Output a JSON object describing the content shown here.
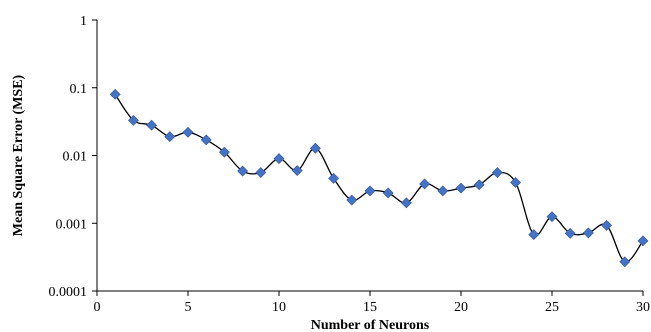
{
  "chart_data": {
    "type": "line",
    "title": "",
    "xlabel": "Number of Neurons",
    "ylabel": "Mean Square Error (MSE)",
    "xlim": [
      0,
      30
    ],
    "ylim": [
      0.0001,
      1
    ],
    "yscale": "log",
    "grid": false,
    "legend": "none",
    "x_ticks": [
      "0",
      "5",
      "10",
      "15",
      "20",
      "25",
      "30"
    ],
    "y_ticks": [
      "0.0001",
      "0.001",
      "0.01",
      "0.1",
      "1"
    ],
    "series": [
      {
        "marker": "diamond",
        "color": "#4472C4",
        "line_color": "#000000",
        "smooth": true,
        "x": [
          1,
          2,
          3,
          4,
          5,
          6,
          7,
          8,
          9,
          10,
          11,
          12,
          13,
          14,
          15,
          16,
          17,
          18,
          19,
          20,
          21,
          22,
          23,
          24,
          25,
          26,
          27,
          28,
          29,
          30
        ],
        "y": [
          0.08,
          0.033,
          0.028,
          0.019,
          0.022,
          0.017,
          0.0112,
          0.0059,
          0.0056,
          0.009,
          0.006,
          0.0128,
          0.0046,
          0.0022,
          0.003,
          0.0028,
          0.002,
          0.0038,
          0.003,
          0.0033,
          0.0037,
          0.0056,
          0.004,
          0.00068,
          0.00125,
          0.00071,
          0.00072,
          0.00093,
          0.00027,
          0.00055
        ]
      }
    ]
  }
}
